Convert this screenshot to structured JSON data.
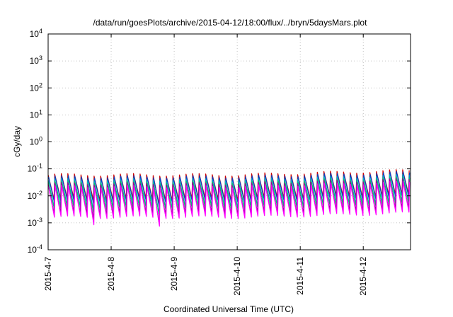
{
  "chart_data": {
    "type": "line",
    "title": "/data/run/goesPlots/archive/2015-04-12/18:00/flux/../bryn/5daysMars.plot",
    "xlabel": "Coordinated Universal Time (UTC)",
    "ylabel": "cGy/day",
    "y_scale": "log",
    "ylim": [
      0.0001,
      10000
    ],
    "y_ticks": [
      {
        "exp": "-4",
        "value": 0.0001
      },
      {
        "exp": "-3",
        "value": 0.001
      },
      {
        "exp": "-2",
        "value": 0.01
      },
      {
        "exp": "-1",
        "value": 0.1
      },
      {
        "exp": "0",
        "value": 1
      },
      {
        "exp": "1",
        "value": 10
      },
      {
        "exp": "2",
        "value": 100
      },
      {
        "exp": "3",
        "value": 1000
      },
      {
        "exp": "4",
        "value": 10000
      }
    ],
    "xlim": [
      "2015-04-07T00:00",
      "2015-04-12T18:00"
    ],
    "x_ticks": [
      {
        "label": "2015-4-7",
        "date": "2015-04-07"
      },
      {
        "label": "2015-4-8",
        "date": "2015-04-08"
      },
      {
        "label": "2015-4-9",
        "date": "2015-04-09"
      },
      {
        "label": "2015-4-10",
        "date": "2015-04-10"
      },
      {
        "label": "2015-4-11",
        "date": "2015-04-11"
      },
      {
        "label": "2015-4-12",
        "date": "2015-04-12"
      }
    ],
    "grid": true,
    "legend": "none",
    "cycle_hours": 2.5,
    "series": [
      {
        "color": "#cc0000",
        "peak": 0.06,
        "trough": 0.0075
      },
      {
        "color": "#0044cc",
        "peak": 0.05,
        "trough": 0.0055
      },
      {
        "color": "#00aacc",
        "peak": 0.04,
        "trough": 0.004
      },
      {
        "color": "#00cc66",
        "peak": 0.032,
        "trough": 0.003
      },
      {
        "color": "#990099",
        "peak": 0.028,
        "trough": 0.0022
      },
      {
        "color": "#ff00ff",
        "peak": 0.022,
        "trough": 0.0016
      }
    ],
    "dips": [
      {
        "time": "2015-04-07T18:00",
        "value": 0.0006
      },
      {
        "time": "2015-04-08T17:30",
        "value": 0.0003
      }
    ]
  }
}
